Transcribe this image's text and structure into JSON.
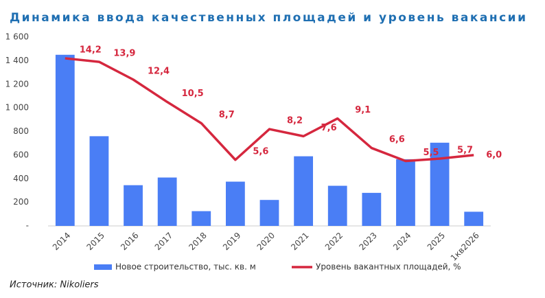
{
  "chart_data": {
    "type": "bar_line",
    "title": "Динамика ввода качественных площадей и уровень вакансии",
    "source": "Источник: Nikoliers",
    "categories": [
      "2014",
      "2015",
      "2016",
      "2017",
      "2018",
      "2019",
      "2020",
      "2021",
      "2022",
      "2023",
      "2024",
      "2025",
      "1кв2026"
    ],
    "series": [
      {
        "name": "Новое строительство, тыс. кв. м",
        "type": "bar",
        "color": "#4a7ef5",
        "values": [
          1450,
          760,
          345,
          410,
          125,
          375,
          220,
          590,
          340,
          280,
          565,
          705,
          120
        ]
      },
      {
        "name": "Уровень вакантных площадей, %",
        "type": "line",
        "color": "#d5273e",
        "axis": "y2",
        "values": [
          14.2,
          13.9,
          12.4,
          10.5,
          8.7,
          5.6,
          8.2,
          7.6,
          9.1,
          6.6,
          5.5,
          5.7,
          6.0
        ],
        "value_labels": [
          "14,2",
          "13,9",
          "12,4",
          "10,5",
          "8,7",
          "5,6",
          "8,2",
          "7,6",
          "9,1",
          "6,6",
          "5,5",
          "5,7",
          "6,0"
        ]
      }
    ],
    "ylim": [
      0,
      1600
    ],
    "yticks": [
      {
        "value": 0,
        "label": "-"
      },
      200,
      400,
      600,
      800,
      {
        "value": 1000,
        "label": "1 000"
      },
      {
        "value": 1200,
        "label": "1 200"
      },
      {
        "value": 1400,
        "label": "1 400"
      },
      {
        "value": 1600,
        "label": "1 600"
      }
    ],
    "y2lim": [
      0,
      16
    ],
    "grid": false
  }
}
